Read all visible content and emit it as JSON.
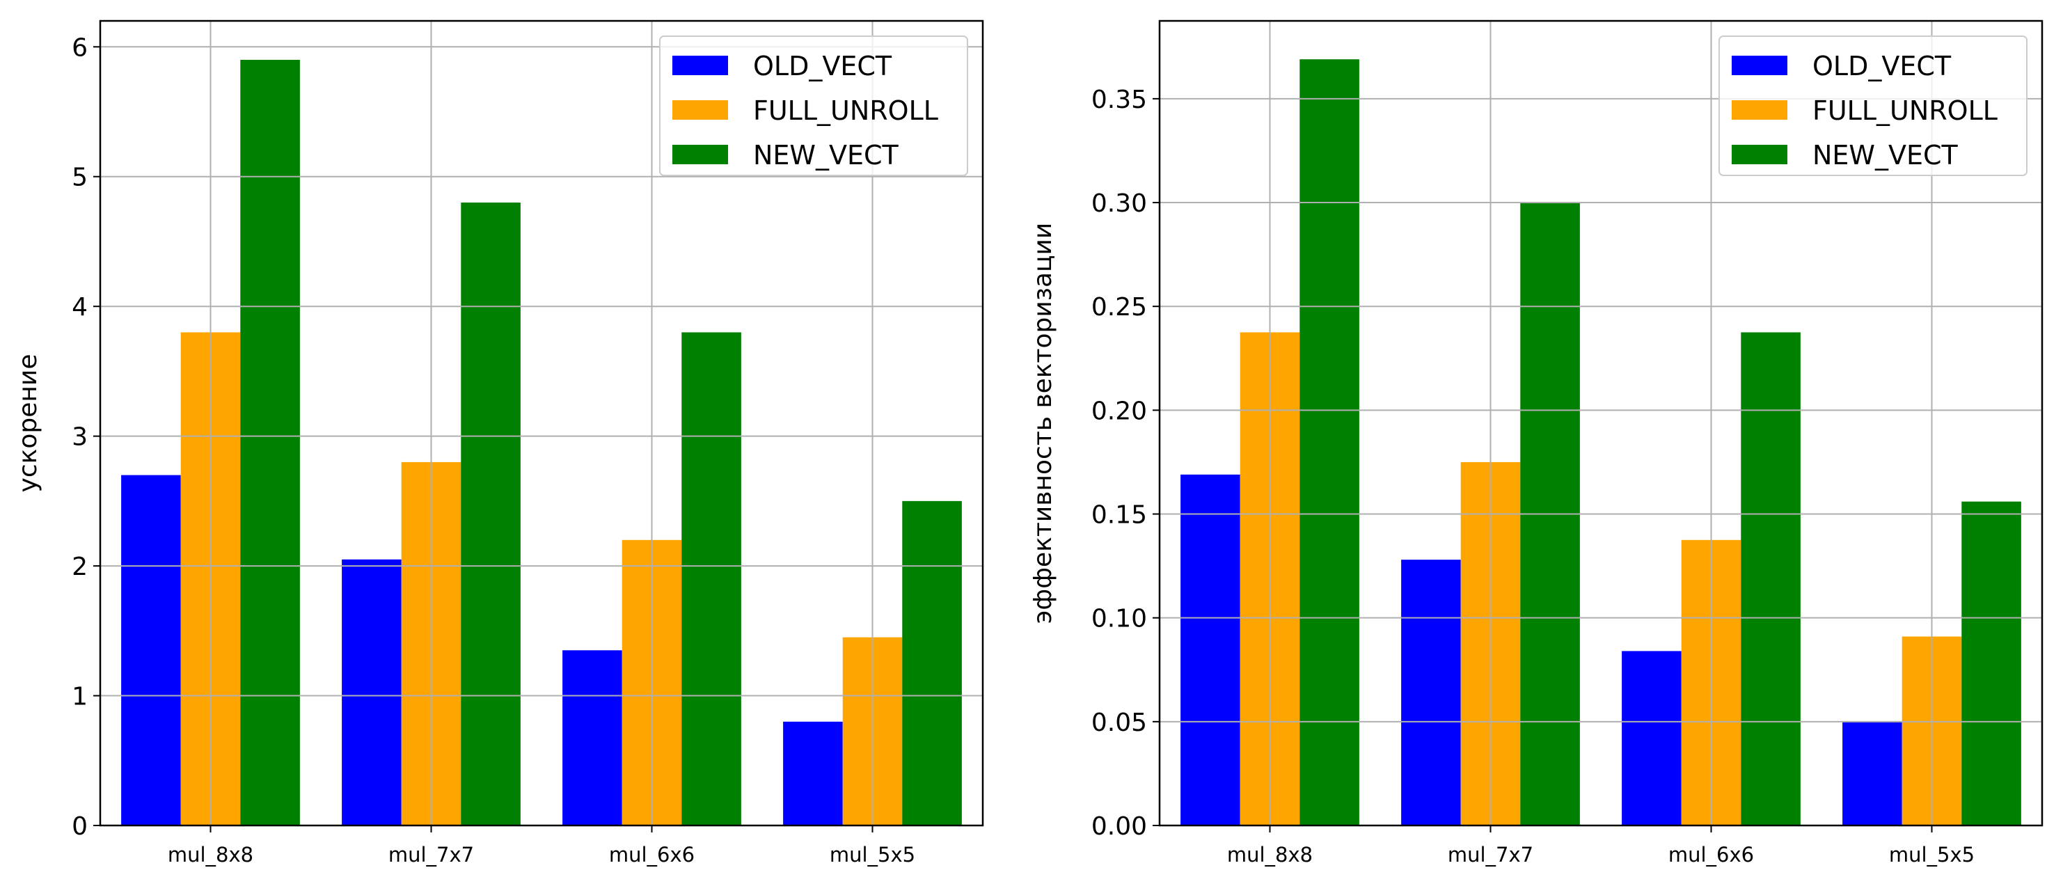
{
  "chart_data": [
    {
      "type": "bar",
      "title": "",
      "xlabel": "",
      "ylabel": "ускорение",
      "ylim": [
        0,
        6.2
      ],
      "yticks": [
        0,
        1,
        2,
        3,
        4,
        5,
        6
      ],
      "ytick_labels": [
        "0",
        "1",
        "2",
        "3",
        "4",
        "5",
        "6"
      ],
      "categories": [
        "mul_8x8",
        "mul_7x7",
        "mul_6x6",
        "mul_5x5"
      ],
      "series": [
        {
          "name": "OLD_VECT",
          "color": "#0000ff",
          "values": [
            2.7,
            2.05,
            1.35,
            0.8
          ]
        },
        {
          "name": "FULL_UNROLL",
          "color": "#ffa500",
          "values": [
            3.8,
            2.8,
            2.2,
            1.45
          ]
        },
        {
          "name": "NEW_VECT",
          "color": "#008000",
          "values": [
            5.9,
            4.8,
            3.8,
            2.5
          ]
        }
      ],
      "grid": true,
      "legend_position": "top-right"
    },
    {
      "type": "bar",
      "title": "",
      "xlabel": "",
      "ylabel": "эффективность векторизации",
      "ylim": [
        0,
        0.3875
      ],
      "yticks": [
        0,
        0.05,
        0.1,
        0.15,
        0.2,
        0.25,
        0.3,
        0.35
      ],
      "ytick_labels": [
        "0.00",
        "0.05",
        "0.10",
        "0.15",
        "0.20",
        "0.25",
        "0.30",
        "0.35"
      ],
      "categories": [
        "mul_8x8",
        "mul_7x7",
        "mul_6x6",
        "mul_5x5"
      ],
      "series": [
        {
          "name": "OLD_VECT",
          "color": "#0000ff",
          "values": [
            0.169,
            0.128,
            0.084,
            0.05
          ]
        },
        {
          "name": "FULL_UNROLL",
          "color": "#ffa500",
          "values": [
            0.2375,
            0.175,
            0.1375,
            0.091
          ]
        },
        {
          "name": "NEW_VECT",
          "color": "#008000",
          "values": [
            0.369,
            0.3,
            0.2375,
            0.156
          ]
        }
      ],
      "grid": true,
      "legend_position": "top-right"
    }
  ]
}
